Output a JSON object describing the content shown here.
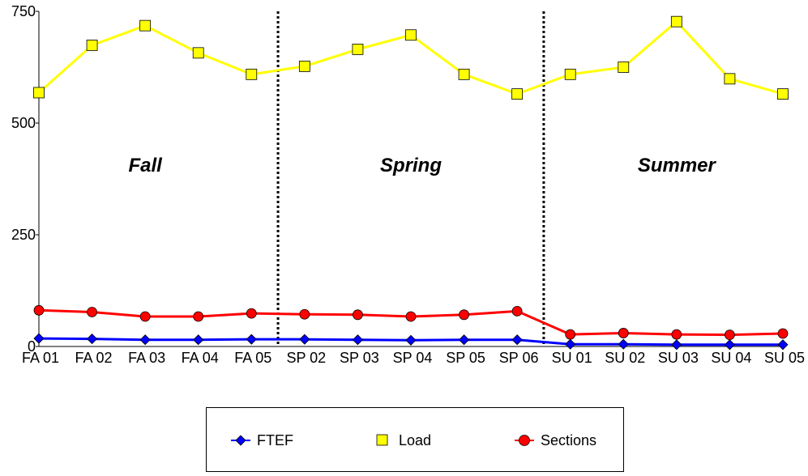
{
  "chart_data": {
    "type": "line",
    "categories": [
      "FA 01",
      "FA 02",
      "FA 03",
      "FA 04",
      "FA 05",
      "SP 02",
      "SP 03",
      "SP 04",
      "SP 05",
      "SP 06",
      "SU 01",
      "SU 02",
      "SU 03",
      "SU 04",
      "SU 05"
    ],
    "ylim": [
      0,
      750
    ],
    "yticks": [
      "0",
      "250",
      "500",
      "750"
    ],
    "grid": false,
    "legend_position": "bottom",
    "series": [
      {
        "name": "FTEF",
        "color": "#0000ff",
        "marker": "diamond",
        "values": [
          18,
          17,
          15,
          15,
          16,
          16,
          15,
          14,
          15,
          15,
          5,
          5,
          4,
          4,
          4
        ]
      },
      {
        "name": "Load",
        "color": "#ffff00",
        "marker": "square",
        "values": [
          568,
          674,
          718,
          657,
          609,
          627,
          665,
          697,
          609,
          565,
          609,
          625,
          727,
          599,
          565
        ]
      },
      {
        "name": "Sections",
        "color": "#ff0000",
        "marker": "circle",
        "values": [
          81,
          77,
          67,
          67,
          74,
          72,
          71,
          67,
          71,
          79,
          27,
          30,
          27,
          26,
          29
        ]
      }
    ],
    "sections": [
      {
        "label": "Fall",
        "from": 0,
        "to": 4
      },
      {
        "label": "Spring",
        "from": 5,
        "to": 9
      },
      {
        "label": "Summer",
        "from": 10,
        "to": 14
      }
    ]
  }
}
